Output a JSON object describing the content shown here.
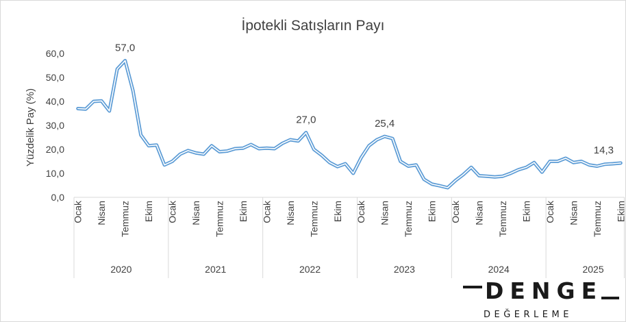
{
  "chart_data": {
    "type": "line",
    "title": "İpotekli Satışların Payı",
    "ylabel": "Yüzdelik Pay (%)",
    "ylim": [
      0,
      60
    ],
    "yticks": [
      "0,0",
      "10,0",
      "20,0",
      "30,0",
      "40,0",
      "50,0",
      "60,0"
    ],
    "month_labels": [
      "Ocak",
      "Nisan",
      "Temmuz",
      "Ekim"
    ],
    "years": [
      "2020",
      "2021",
      "2022",
      "2023",
      "2024",
      "2025"
    ],
    "grid": false,
    "legend": "none",
    "line_color": "#5b9bd5",
    "series": [
      {
        "values": [
          37.0,
          36.8,
          40.0,
          40.2,
          36.0,
          53.5,
          57.0,
          44.5,
          26.0,
          21.5,
          21.8,
          13.5,
          15.0,
          18.0,
          19.5,
          18.5,
          18.0,
          21.5,
          19.0,
          19.3,
          20.3,
          20.5,
          22.0,
          20.3,
          20.5,
          20.3,
          22.5,
          24.0,
          23.5,
          27.0,
          20.0,
          17.5,
          14.5,
          12.8,
          14.0,
          10.0,
          16.5,
          21.5,
          24.0,
          25.4,
          24.5,
          15.0,
          13.0,
          13.5,
          7.5,
          5.5,
          4.8,
          4.0,
          7.0,
          9.5,
          12.5,
          9.0,
          8.8,
          8.5,
          8.8,
          10.0,
          11.5,
          12.5,
          14.5,
          10.5,
          15.0,
          15.0,
          16.3,
          14.5,
          15.0,
          13.5,
          13.0,
          13.8,
          14.0,
          14.3
        ]
      }
    ],
    "annotations": [
      {
        "index": 6,
        "label": "57,0"
      },
      {
        "index": 29,
        "label": "27,0"
      },
      {
        "index": 39,
        "label": "25,4"
      },
      {
        "index": 69,
        "label": "14,3"
      }
    ]
  },
  "logo": {
    "name": "DENGE",
    "sub": "DEĞERLEME"
  }
}
